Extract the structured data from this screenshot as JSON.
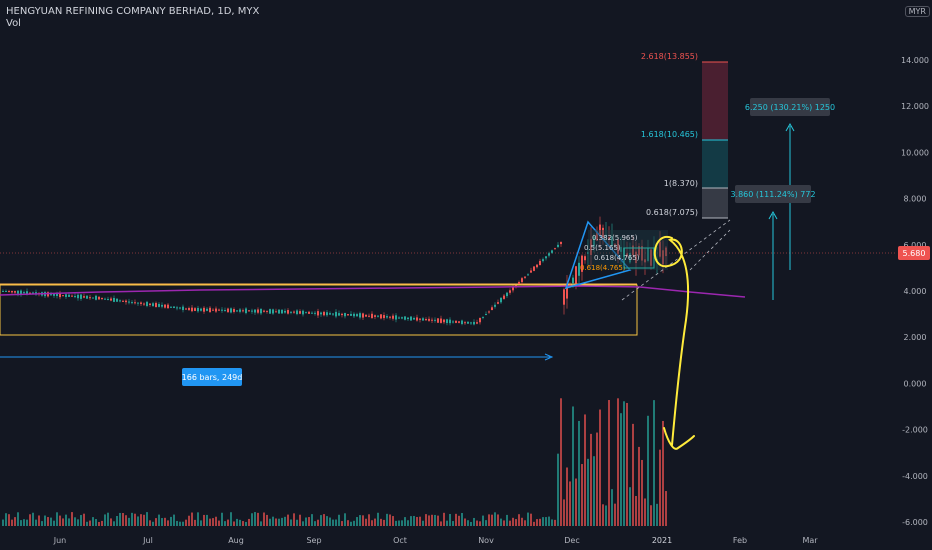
{
  "header": {
    "symbol_line": "HENGYUAN REFINING COMPANY BERHAD, 1D, MYX",
    "indicator": "Vol",
    "currency": "MYR"
  },
  "price_marker": {
    "value": "5.680",
    "price": 5.68
  },
  "fib_levels": [
    {
      "label": "2.618(13.855)",
      "price": 13.855,
      "color": "#ef5350"
    },
    {
      "label": "1.618(10.465)",
      "price": 10.465,
      "color": "#26c6da"
    },
    {
      "label": "1(8.370)",
      "price": 8.37,
      "color": "#d1d4dc"
    },
    {
      "label": "0.618(7.075)",
      "price": 7.075,
      "color": "#d1d4dc"
    }
  ],
  "fib_inner_labels": [
    "0.382(5.965)",
    "0.5(5.165)",
    "0.618(4.765)"
  ],
  "projection_labels": {
    "upper": "6.250 (130.21%) 1250",
    "lower": "3.860 (111.24%) 772"
  },
  "range_label": "166 bars, 249d",
  "colors": {
    "up": "#26a69a",
    "down": "#ef5350",
    "accent": "#2196f3",
    "ma": "#9c27b0",
    "box": "#f6c343",
    "hand_drawn": "#ffeb3b"
  },
  "chart_data": {
    "type": "candlestick",
    "title": "HENGYUAN REFINING COMPANY BERHAD, 1D, MYX",
    "x_ticks": [
      "Jun",
      "Jul",
      "Aug",
      "Sep",
      "Oct",
      "Nov",
      "Dec",
      "2021",
      "Feb",
      "Mar"
    ],
    "y_ticks": [
      "14.000",
      "12.000",
      "10.000",
      "8.000",
      "6.000",
      "4.000",
      "2.000",
      "0.000",
      "-2.000",
      "-4.000",
      "-6.000"
    ],
    "ylim": [
      -6,
      14
    ],
    "price_path": [
      {
        "month": "Jun",
        "price": 4.0
      },
      {
        "month": "Jul",
        "price": 3.7
      },
      {
        "month": "Aug",
        "price": 3.2
      },
      {
        "month": "Sep",
        "price": 3.1
      },
      {
        "month": "Oct",
        "price": 2.9
      },
      {
        "month": "Nov",
        "price": 2.6
      },
      {
        "month": "Dec",
        "price": 6.5
      },
      {
        "month": "2021",
        "price": 5.7
      }
    ],
    "last_price": 5.68
  }
}
